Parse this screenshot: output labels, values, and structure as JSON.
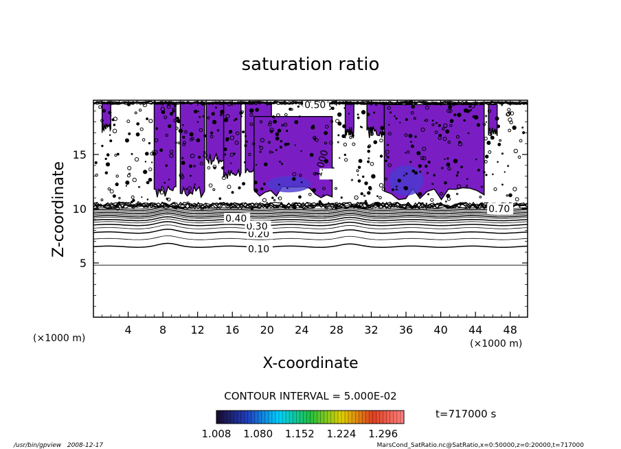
{
  "chart_data": {
    "type": "contour",
    "title": "saturation ratio",
    "xlabel": "X-coordinate",
    "ylabel": "Z-coordinate",
    "x_unit": "(×1000 m)",
    "y_unit": "(×1000 m)",
    "xlim": [
      0,
      50
    ],
    "ylim": [
      0,
      20
    ],
    "x_ticks": [
      4,
      8,
      12,
      16,
      20,
      24,
      28,
      32,
      36,
      40,
      44,
      48
    ],
    "y_ticks": [
      5,
      10,
      15
    ],
    "grid": false,
    "contour_interval_text": "CONTOUR INTERVAL = 5.000E-02",
    "time_text": "t=717000 s",
    "lower_contours": [
      {
        "level": 0.05,
        "z": 4.8
      },
      {
        "level": 0.1,
        "z": 6.5
      },
      {
        "level": 0.15,
        "z": 7.2
      },
      {
        "level": 0.2,
        "z": 7.8
      },
      {
        "level": 0.25,
        "z": 8.2
      },
      {
        "level": 0.3,
        "z": 8.5
      },
      {
        "level": 0.35,
        "z": 8.75
      },
      {
        "level": 0.4,
        "z": 8.95
      },
      {
        "level": 0.45,
        "z": 9.15
      },
      {
        "level": 0.5,
        "z": 9.3
      },
      {
        "level": 0.55,
        "z": 9.45
      },
      {
        "level": 0.6,
        "z": 9.6
      },
      {
        "level": 0.65,
        "z": 9.75
      },
      {
        "level": 0.7,
        "z": 9.9
      },
      {
        "level": 0.75,
        "z": 10.05
      }
    ],
    "contour_labels": [
      {
        "text": "0.10",
        "x": 17.8,
        "z": 6.3
      },
      {
        "text": "0.20",
        "x": 17.8,
        "z": 7.7
      },
      {
        "text": "0.30",
        "x": 17.6,
        "z": 8.4
      },
      {
        "text": "0.40",
        "x": 15.2,
        "z": 9.1
      },
      {
        "text": "0.50",
        "x": 24.3,
        "z": 19.6
      },
      {
        "text": "0.70",
        "x": 45.5,
        "z": 10.0
      },
      {
        "text": "1.000",
        "x": 26.2,
        "z": 13.2
      }
    ],
    "supersaturated_regions": [
      {
        "x": [
          1.0,
          2.0
        ],
        "z": [
          17.0,
          19.8
        ]
      },
      {
        "x": [
          7.0,
          9.5
        ],
        "z": [
          11.0,
          19.8
        ]
      },
      {
        "x": [
          10.0,
          12.8
        ],
        "z": [
          11.0,
          19.8
        ]
      },
      {
        "x": [
          13.0,
          15.0
        ],
        "z": [
          14.0,
          19.8
        ]
      },
      {
        "x": [
          15.0,
          17.0
        ],
        "z": [
          12.5,
          19.8
        ]
      },
      {
        "x": [
          17.5,
          20.5
        ],
        "z": [
          13.0,
          19.8
        ]
      },
      {
        "x": [
          18.5,
          27.5
        ],
        "z": [
          11.0,
          18.5
        ]
      },
      {
        "x": [
          29.0,
          30.0
        ],
        "z": [
          16.5,
          19.8
        ]
      },
      {
        "x": [
          31.5,
          33.5
        ],
        "z": [
          16.5,
          19.8
        ]
      },
      {
        "x": [
          33.5,
          45.0
        ],
        "z": [
          10.8,
          19.6
        ]
      },
      {
        "x": [
          45.5,
          46.5
        ],
        "z": [
          16.5,
          19.6
        ]
      }
    ],
    "color_scale": {
      "min": 1.008,
      "max": 1.332,
      "tick_labels": [
        "1.008",
        "1.080",
        "1.152",
        "1.224",
        "1.296"
      ],
      "stops": [
        "#1a0a2e",
        "#2040c0",
        "#00d0ff",
        "#20c040",
        "#e0d000",
        "#e04020",
        "#ff8080"
      ]
    }
  },
  "footer": {
    "left": "/usr/bin/gpview   2008-12-17",
    "right": "MarsCond_SatRatio.nc@SatRatio,x=0:50000,z=0:20000,t=717000"
  }
}
